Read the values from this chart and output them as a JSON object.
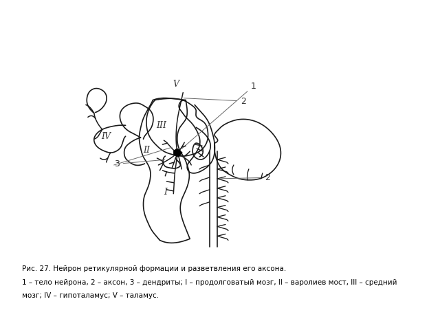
{
  "title_line1": "Рис. 27. Нейрон ретикулярной формации и разветвления его аксона.",
  "title_line2": "1 – тело нейрона, 2 – аксон, 3 – дендриты; I – продолговатый мозг, II – варолиев мост, III – средний",
  "title_line3": "мозг; IV – гипоталамус; V – таламус.",
  "bg_color": "#ffffff",
  "line_color": "#1a1a1a",
  "label_color": "#333333",
  "caption_font_size": 7.5
}
